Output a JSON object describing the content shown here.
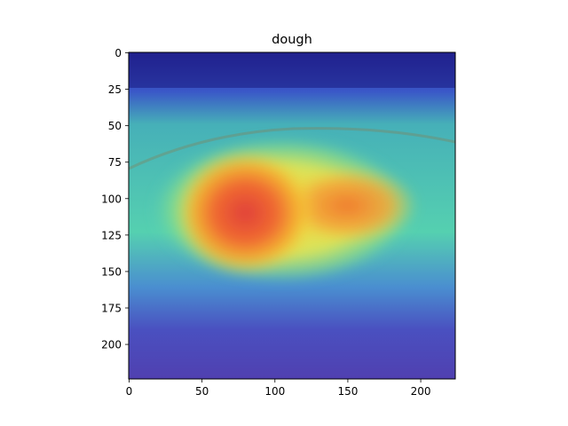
{
  "chart_data": {
    "type": "heatmap",
    "title": "dough",
    "xlabel": "",
    "ylabel": "",
    "xlim": [
      0,
      224
    ],
    "ylim": [
      224,
      0
    ],
    "x_ticks": [
      0,
      50,
      100,
      150,
      200
    ],
    "y_ticks": [
      0,
      25,
      50,
      75,
      100,
      125,
      150,
      175,
      200
    ],
    "grid": false,
    "colormap": "jet",
    "overlay": "saliency heatmap over photo of dough",
    "hotspots": [
      {
        "cx": 80,
        "cy": 110,
        "rx": 42,
        "ry": 38,
        "intensity": 1.0
      },
      {
        "cx": 150,
        "cy": 105,
        "rx": 42,
        "ry": 24,
        "intensity": 0.85
      },
      {
        "cx": 105,
        "cy": 108,
        "rx": 78,
        "ry": 44,
        "intensity": 0.55
      }
    ]
  }
}
